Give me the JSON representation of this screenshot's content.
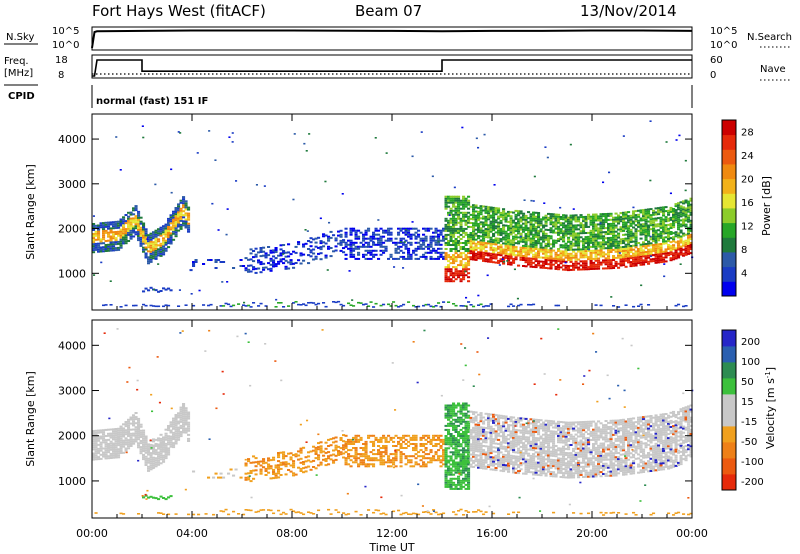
{
  "header": {
    "station": "Fort Hays West (fitACF)",
    "beam": "Beam 07",
    "date": "13/Nov/2014"
  },
  "panel_labels": {
    "nsky": "N.Sky",
    "nsky_ticks": [
      "10^5",
      "10^0"
    ],
    "nsearch": "N.Search",
    "nsearch_ticks": [
      "10^5",
      "10^0"
    ],
    "freq": "Freq.",
    "freq_unit": "[MHz]",
    "freq_ticks": [
      "18",
      "8"
    ],
    "nave": "Nave",
    "nave_ticks": [
      "60",
      "0"
    ],
    "cpid": "CPID",
    "cpid_text": "normal (fast) 151 IF"
  },
  "chart_data": [
    {
      "type": "line",
      "title": "N.Sky / N.Search",
      "x_range_hours": [
        0,
        24
      ],
      "series": [
        {
          "name": "N.Sky",
          "x": [
            0,
            0.1,
            0.2,
            2,
            4,
            8,
            12,
            14,
            16,
            18,
            20,
            22,
            24
          ],
          "y": [
            0,
            4.2,
            4.4,
            4.5,
            4.6,
            4.6,
            4.5,
            4.4,
            4.5,
            4.5,
            4.6,
            4.6,
            4.5
          ]
        }
      ]
    },
    {
      "type": "line",
      "title": "Freq. / Nave",
      "x_range_hours": [
        0,
        24
      ],
      "series": [
        {
          "name": "Freq.",
          "x": [
            0,
            0.1,
            0.2,
            2.0,
            2.0,
            14.0,
            14.0,
            24
          ],
          "y": [
            8,
            8,
            18,
            18,
            11,
            11,
            18,
            18
          ]
        },
        {
          "name": "Nave",
          "x": [
            0,
            24
          ],
          "y": [
            0,
            0
          ]
        }
      ]
    },
    {
      "type": "heatmap",
      "title": "Power",
      "ylabel": "Slant Range [km]",
      "ylim": [
        180,
        4560
      ],
      "yticks": [
        "1000",
        "2000",
        "3000",
        "4000"
      ],
      "colorbar_label": "Power [dB]",
      "colorbar_ticks": [
        "4",
        "8",
        "12",
        "16",
        "20",
        "24",
        "28"
      ],
      "colorbar_range": [
        0,
        30
      ],
      "colors": [
        "#0000ee",
        "#1a3cc4",
        "#2c5aa8",
        "#1f7a3c",
        "#27a627",
        "#8ccc2a",
        "#e6e633",
        "#f2b21a",
        "#f08a10",
        "#ec5a10",
        "#e62a0a",
        "#cc0000"
      ]
    },
    {
      "type": "heatmap",
      "title": "Velocity",
      "ylabel": "Slant Range [km]",
      "ylim": [
        180,
        4560
      ],
      "yticks": [
        "1000",
        "2000",
        "3000",
        "4000"
      ],
      "colorbar_label": "Velocity [m s-1]",
      "colorbar_ticks": [
        "200",
        "100",
        "50",
        "15",
        "-15",
        "-50",
        "-100",
        "-200"
      ],
      "colors": [
        "#2626c8",
        "#2a5fb0",
        "#2d8c52",
        "#3cc03c",
        "#c8c8c8",
        "#c8c8c8",
        "#f0a01e",
        "#ee8018",
        "#ec5a10",
        "#e62a0a"
      ]
    }
  ],
  "time_axis": {
    "label": "Time UT",
    "ticks": [
      "00:00",
      "04:00",
      "08:00",
      "12:00",
      "16:00",
      "20:00",
      "00:00"
    ]
  }
}
